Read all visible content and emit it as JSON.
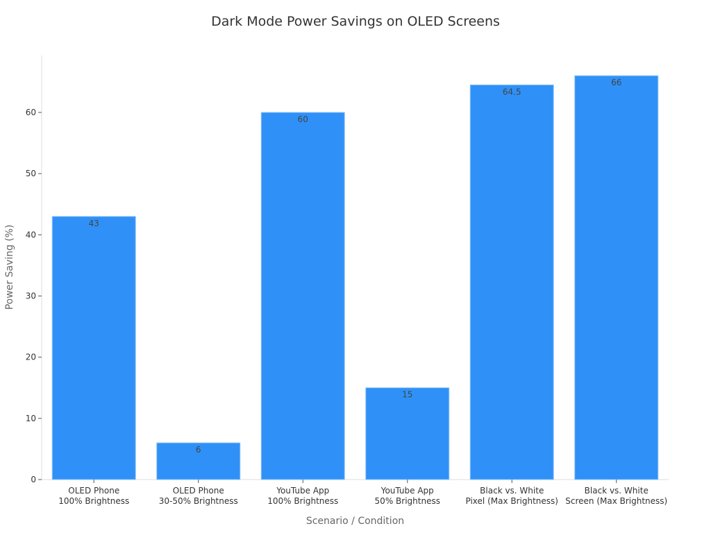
{
  "chart_data": {
    "type": "bar",
    "title": "Dark Mode Power Savings on OLED Screens",
    "xlabel": "Scenario / Condition",
    "ylabel": "Power Saving (%)",
    "categories": [
      [
        "OLED Phone",
        "100% Brightness"
      ],
      [
        "OLED Phone",
        "30-50% Brightness"
      ],
      [
        "YouTube App",
        "100% Brightness"
      ],
      [
        "YouTube App",
        "50% Brightness"
      ],
      [
        "Black vs. White",
        "Pixel (Max Brightness)"
      ],
      [
        "Black vs. White",
        "Screen (Max Brightness)"
      ]
    ],
    "values": [
      43,
      6,
      60,
      15,
      64.5,
      66
    ],
    "data_labels": [
      "43",
      "6",
      "60",
      "15",
      "64.5",
      "66"
    ],
    "yticks": [
      0,
      10,
      20,
      30,
      40,
      50,
      60
    ],
    "ylim": [
      0,
      69.3
    ],
    "grid": false,
    "bar_color": "#2f91f7"
  }
}
